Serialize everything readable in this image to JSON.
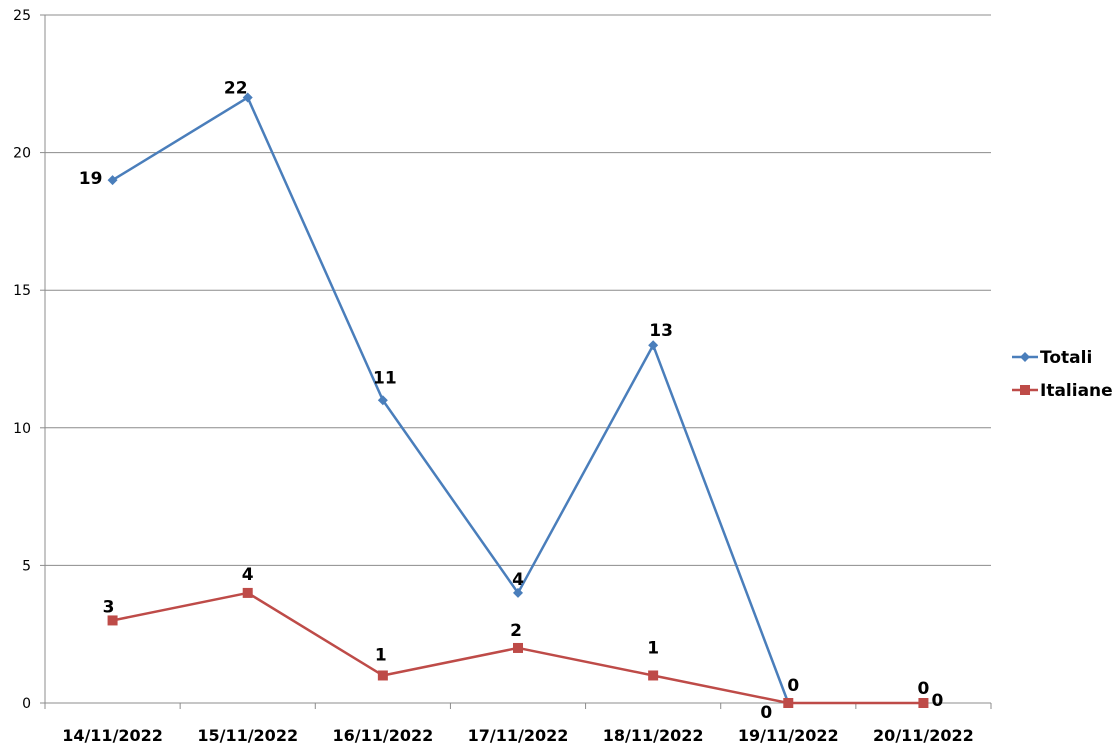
{
  "chart_data": {
    "type": "line",
    "categories": [
      "14/11/2022",
      "15/11/2022",
      "16/11/2022",
      "17/11/2022",
      "18/11/2022",
      "19/11/2022",
      "20/11/2022"
    ],
    "series": [
      {
        "name": "Totali",
        "values": [
          19,
          22,
          11,
          4,
          13,
          0,
          null
        ],
        "color": "#4a7ebb",
        "marker": "diamond"
      },
      {
        "name": "Italiane",
        "values": [
          3,
          4,
          1,
          2,
          1,
          0,
          0
        ],
        "color": "#be4b48",
        "marker": "square"
      }
    ],
    "data_labels": {
      "Totali": [
        "19",
        "22",
        "11",
        "4",
        "13",
        "0",
        "0"
      ],
      "Italiane": [
        "3",
        "4",
        "1",
        "2",
        "1",
        "0",
        "0"
      ]
    },
    "yticks": [
      "0",
      "5",
      "10",
      "15",
      "20",
      "25"
    ],
    "ylim": [
      0,
      25
    ],
    "grid": true,
    "legend_position": "right",
    "title": "",
    "xlabel": "",
    "ylabel": ""
  }
}
